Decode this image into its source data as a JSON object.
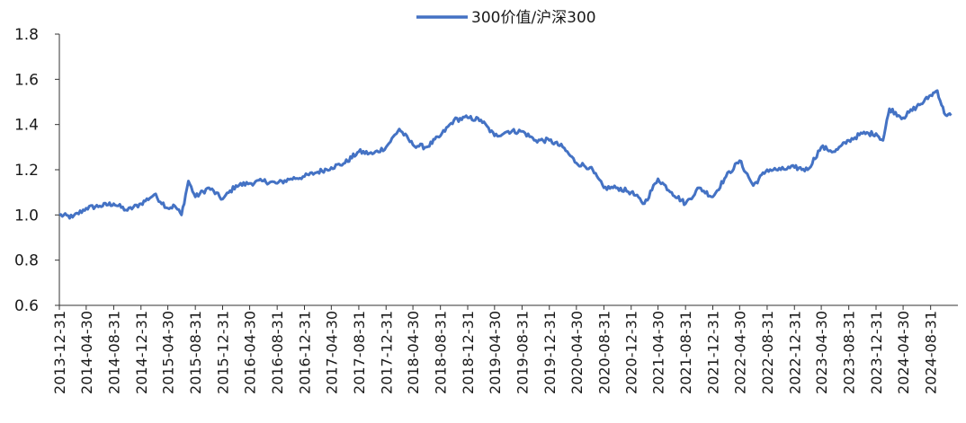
{
  "chart_data": {
    "type": "line",
    "title": "",
    "xlabel": "",
    "ylabel": "",
    "ylim": [
      0.6,
      1.8
    ],
    "yticks": [
      "0.6",
      "0.8",
      "1.0",
      "1.2",
      "1.4",
      "1.6",
      "1.8"
    ],
    "xticks": [
      "2013-12-31",
      "2014-04-30",
      "2014-08-31",
      "2014-12-31",
      "2015-04-30",
      "2015-08-31",
      "2015-12-31",
      "2016-04-30",
      "2016-08-31",
      "2016-12-31",
      "2017-04-30",
      "2017-08-31",
      "2017-12-31",
      "2018-04-30",
      "2018-08-31",
      "2018-12-31",
      "2019-04-30",
      "2019-08-31",
      "2019-12-31",
      "2020-04-30",
      "2020-08-31",
      "2020-12-31",
      "2021-04-30",
      "2021-08-31",
      "2021-12-31",
      "2022-04-30",
      "2022-08-31",
      "2022-12-31",
      "2023-04-30",
      "2023-08-31",
      "2023-12-31",
      "2024-04-30",
      "2024-08-31"
    ],
    "legend": "top-center",
    "grid": false,
    "series": [
      {
        "name": "300价值/沪深300",
        "color": "#4472C4",
        "x": [
          "2013-12-31",
          "2014-02-28",
          "2014-04-30",
          "2014-06-30",
          "2014-08-31",
          "2014-10-31",
          "2014-12-31",
          "2015-02-28",
          "2015-04-30",
          "2015-05-31",
          "2015-06-30",
          "2015-07-31",
          "2015-08-31",
          "2015-10-31",
          "2015-12-31",
          "2016-02-29",
          "2016-04-30",
          "2016-06-30",
          "2016-08-31",
          "2016-10-31",
          "2016-12-31",
          "2017-02-28",
          "2017-04-30",
          "2017-06-30",
          "2017-08-31",
          "2017-10-31",
          "2017-12-31",
          "2018-02-28",
          "2018-04-30",
          "2018-06-30",
          "2018-08-31",
          "2018-10-31",
          "2018-12-31",
          "2019-02-28",
          "2019-04-30",
          "2019-06-30",
          "2019-08-31",
          "2019-10-31",
          "2019-12-31",
          "2020-02-29",
          "2020-04-30",
          "2020-06-30",
          "2020-08-31",
          "2020-10-31",
          "2020-12-31",
          "2021-02-28",
          "2021-04-30",
          "2021-06-30",
          "2021-08-31",
          "2021-10-31",
          "2021-12-31",
          "2022-02-28",
          "2022-04-30",
          "2022-06-30",
          "2022-08-31",
          "2022-10-31",
          "2022-12-31",
          "2023-02-28",
          "2023-04-30",
          "2023-06-30",
          "2023-08-31",
          "2023-10-31",
          "2023-12-31",
          "2024-01-31",
          "2024-02-29",
          "2024-04-30",
          "2024-06-30",
          "2024-07-31",
          "2024-08-31",
          "2024-09-30",
          "2024-10-31",
          "2024-11-30"
        ],
        "values": [
          1.0,
          0.99,
          1.03,
          1.04,
          1.05,
          1.02,
          1.05,
          1.09,
          1.03,
          1.04,
          1.0,
          1.15,
          1.08,
          1.12,
          1.07,
          1.13,
          1.14,
          1.15,
          1.14,
          1.16,
          1.17,
          1.19,
          1.21,
          1.23,
          1.28,
          1.27,
          1.3,
          1.38,
          1.31,
          1.3,
          1.35,
          1.42,
          1.43,
          1.42,
          1.35,
          1.37,
          1.37,
          1.33,
          1.33,
          1.3,
          1.23,
          1.21,
          1.12,
          1.12,
          1.1,
          1.05,
          1.16,
          1.1,
          1.05,
          1.12,
          1.08,
          1.17,
          1.24,
          1.13,
          1.2,
          1.2,
          1.21,
          1.2,
          1.3,
          1.28,
          1.33,
          1.36,
          1.36,
          1.33,
          1.47,
          1.43,
          1.48,
          1.5,
          1.53,
          1.55,
          1.45,
          1.44
        ]
      }
    ]
  }
}
